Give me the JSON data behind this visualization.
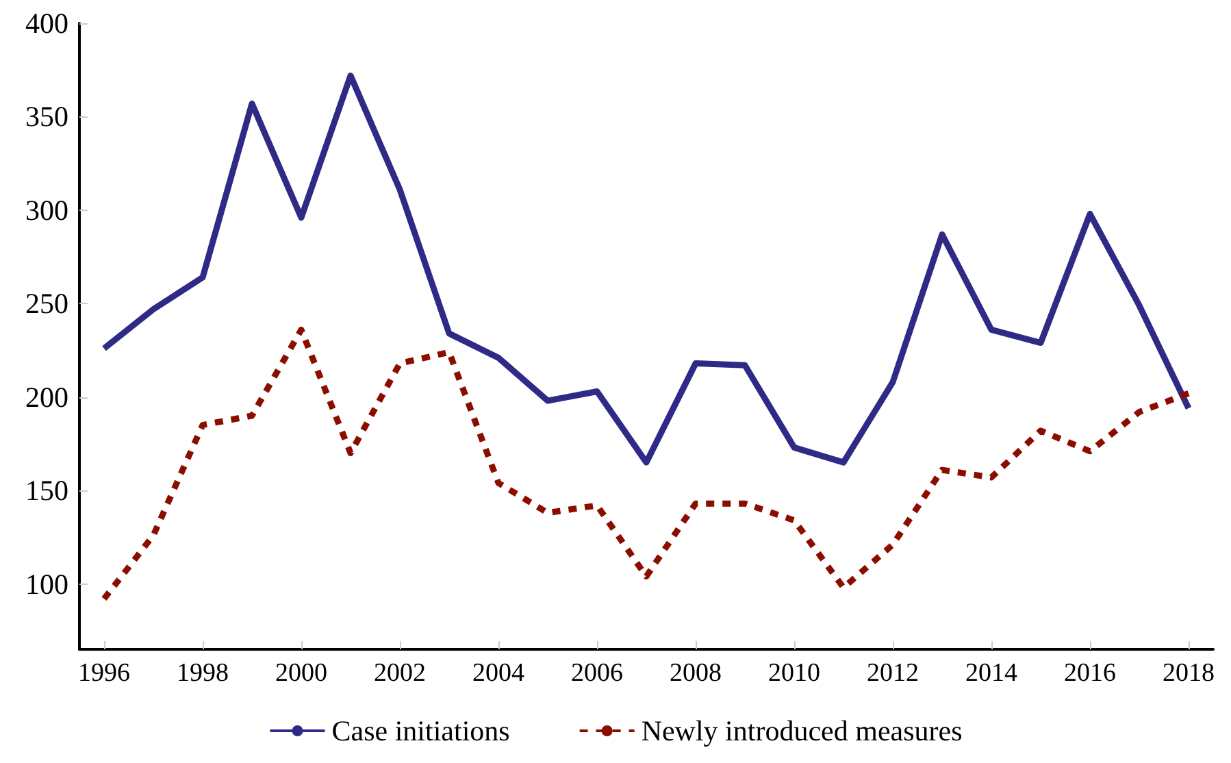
{
  "chart_data": {
    "type": "line",
    "x": [
      1996,
      1997,
      1998,
      1999,
      2000,
      2001,
      2002,
      2003,
      2004,
      2005,
      2006,
      2007,
      2008,
      2009,
      2010,
      2011,
      2012,
      2013,
      2014,
      2015,
      2016,
      2017,
      2018
    ],
    "series": [
      {
        "name": "Case initiations",
        "color": "#2e2a85",
        "line_style": "solid",
        "values": [
          226,
          247,
          264,
          357,
          296,
          372,
          311,
          234,
          221,
          198,
          203,
          165,
          218,
          217,
          173,
          165,
          208,
          287,
          236,
          229,
          298,
          249,
          194
        ]
      },
      {
        "name": "Newly introduced measures",
        "color": "#8b0d00",
        "line_style": "dotted",
        "values": [
          92,
          126,
          185,
          190,
          236,
          170,
          218,
          224,
          154,
          138,
          142,
          104,
          143,
          143,
          134,
          98,
          121,
          161,
          157,
          182,
          171,
          192,
          202
        ]
      }
    ],
    "xlim": [
      1995.5,
      2018.5
    ],
    "xticks": [
      1996,
      1998,
      2000,
      2002,
      2004,
      2006,
      2008,
      2010,
      2012,
      2014,
      2016,
      2018
    ],
    "ylim": [
      65,
      400
    ],
    "yticks": [
      100,
      150,
      200,
      250,
      300,
      350,
      400
    ],
    "grid": false,
    "legend": "bottom",
    "marker": "none"
  }
}
